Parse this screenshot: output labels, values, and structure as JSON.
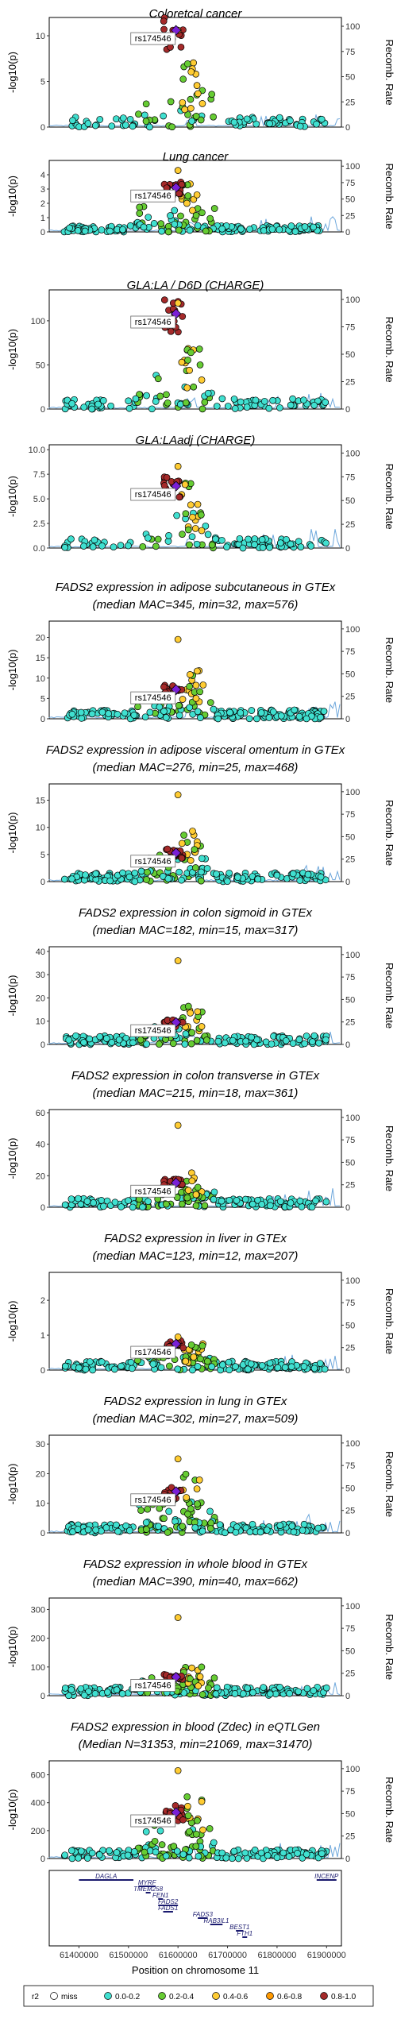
{
  "chart_data": {
    "type": "scatter",
    "x_range": [
      61340000,
      61930000
    ],
    "x_ticks": [
      61400000,
      61500000,
      61600000,
      61700000,
      61800000,
      61900000
    ],
    "x_tick_labels": [
      "61400000",
      "61500000",
      "61600000",
      "61700000",
      "61800000",
      "61900000"
    ],
    "xlabel": "Position on chromosome 11",
    "ylabel_left": "-log10(p)",
    "ylabel_right": "Recomb. Rate",
    "recomb_ticks": [
      "0",
      "25",
      "50",
      "75",
      "100"
    ],
    "lead_snp": "rs174546",
    "legend": {
      "title": "r2",
      "items": [
        {
          "label": "miss",
          "color": "#ffffff"
        },
        {
          "label": "0.0-0.2",
          "color": "#40e0d0"
        },
        {
          "label": "0.2-0.4",
          "color": "#66cc33"
        },
        {
          "label": "0.4-0.6",
          "color": "#ffcc33"
        },
        {
          "label": "0.6-0.8",
          "color": "#ff9900"
        },
        {
          "label": "0.8-1.0",
          "color": "#a52a2a"
        }
      ]
    },
    "panels": [
      {
        "title_lines": [
          "Coloretcal cancer"
        ],
        "y_max": 12,
        "y_ticks": [
          0,
          5,
          10
        ],
        "lead": 10.6,
        "peak": 10.6,
        "secondary": 7.5,
        "dense": false
      },
      {
        "title_lines": [
          "Lung cancer"
        ],
        "y_max": 5,
        "y_ticks": [
          0,
          1,
          2,
          3,
          4
        ],
        "lead": 3.1,
        "peak": 4.3,
        "secondary": 3.5,
        "dense": true
      },
      {
        "title_lines": [
          "GLA:LA / D6D (CHARGE)"
        ],
        "y_max": 135,
        "y_ticks": [
          0,
          50,
          100
        ],
        "lead": 108,
        "peak": 120,
        "secondary": 70,
        "dense": false
      },
      {
        "title_lines": [
          "GLA:LAadj (CHARGE)"
        ],
        "y_max": 10.5,
        "y_ticks": [
          0.0,
          2.5,
          5.0,
          7.5,
          10.0
        ],
        "y_tick_labels": [
          "0.0",
          "2.5",
          "5.0",
          "7.5",
          "10.0"
        ],
        "lead": 6.3,
        "peak": 8.3,
        "secondary": 6.8,
        "dense": false
      },
      {
        "title_lines": [
          "FADS2 expression in adipose subcutaneous in GTEx",
          "(median MAC=345, min=32, max=576)"
        ],
        "y_max": 24,
        "y_ticks": [
          0,
          5,
          10,
          15,
          20
        ],
        "lead": 7.2,
        "peak": 19.5,
        "secondary": 13,
        "dense": true
      },
      {
        "title_lines": [
          "FADS2 expression in adipose visceral omentum in GTEx",
          "(median MAC=276, min=25, max=468)"
        ],
        "y_max": 18,
        "y_ticks": [
          0,
          5,
          10,
          15
        ],
        "lead": 5.3,
        "peak": 16,
        "secondary": 9.5,
        "dense": true
      },
      {
        "title_lines": [
          "FADS2 expression in colon sigmoid in GTEx",
          "(median MAC=182, min=15, max=317)"
        ],
        "y_max": 42,
        "y_ticks": [
          0,
          10,
          20,
          30,
          40
        ],
        "lead": 9.5,
        "peak": 36,
        "secondary": 17,
        "dense": true
      },
      {
        "title_lines": [
          "FADS2 expression in colon transverse in GTEx",
          "(median MAC=215, min=18, max=361)"
        ],
        "y_max": 62,
        "y_ticks": [
          0,
          20,
          40,
          60
        ],
        "lead": 15.5,
        "peak": 52,
        "secondary": 22,
        "dense": true
      },
      {
        "title_lines": [
          "FADS2 expression in liver in GTEx",
          "(median MAC=123, min=12, max=207)"
        ],
        "y_max": 2.8,
        "y_ticks": [
          0,
          1,
          2
        ],
        "lead": 0.75,
        "peak": 0.95,
        "secondary": 0.8,
        "dense": true
      },
      {
        "title_lines": [
          "FADS2 expression in lung in GTEx",
          "(median MAC=302, min=27, max=509)"
        ],
        "y_max": 33,
        "y_ticks": [
          0,
          10,
          20,
          30
        ],
        "lead": 14,
        "peak": 25,
        "secondary": 20,
        "dense": true
      },
      {
        "title_lines": [
          "FADS2 expression in whole blood in GTEx",
          "(median MAC=390, min=40, max=662)"
        ],
        "y_max": 340,
        "y_ticks": [
          0,
          100,
          200,
          300
        ],
        "lead": 65,
        "peak": 272,
        "secondary": 115,
        "dense": true
      },
      {
        "title_lines": [
          "FADS2 expression in blood (Zdec) in eQTLGen",
          "(Median N=31353, min=21069, max=31470)"
        ],
        "y_max": 700,
        "y_ticks": [
          0,
          200,
          400,
          600
        ],
        "lead": 330,
        "peak": 630,
        "secondary": 450,
        "dense": true
      }
    ],
    "genes": [
      {
        "name": "DAGLA",
        "start": 61400000,
        "end": 61510000,
        "row": 0
      },
      {
        "name": "INCENP",
        "start": 61880000,
        "end": 61920000,
        "row": 0
      },
      {
        "name": "MYRF",
        "start": 61520000,
        "end": 61555000,
        "row": 1
      },
      {
        "name": "TMEM258",
        "start": 61535000,
        "end": 61540000,
        "row": 2
      },
      {
        "name": "FEN1",
        "start": 61560000,
        "end": 61565000,
        "row": 3
      },
      {
        "name": "FADS2",
        "start": 61560000,
        "end": 61600000,
        "row": 4
      },
      {
        "name": "FADS1",
        "start": 61570000,
        "end": 61590000,
        "row": 5
      },
      {
        "name": "FADS3",
        "start": 61640000,
        "end": 61660000,
        "row": 6
      },
      {
        "name": "RAB3IL1",
        "start": 61665000,
        "end": 61690000,
        "row": 7
      },
      {
        "name": "BEST1",
        "start": 61717000,
        "end": 61732000,
        "row": 8
      },
      {
        "name": "FTH1",
        "start": 61730000,
        "end": 61735000,
        "row": 9
      }
    ]
  }
}
